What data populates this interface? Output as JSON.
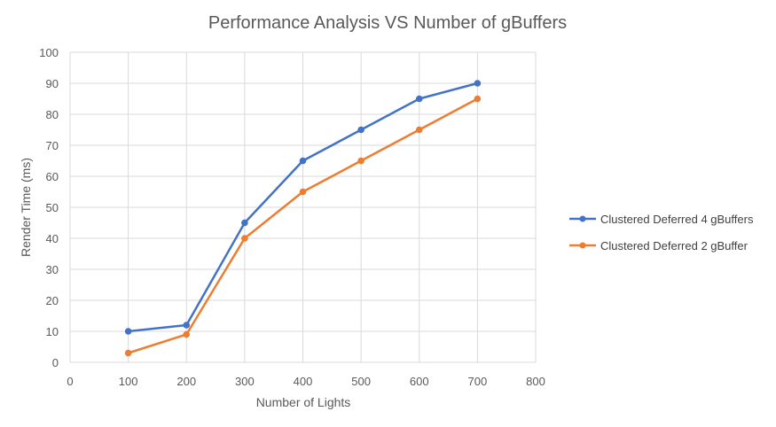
{
  "chart_data": {
    "type": "scatter",
    "title": "Performance Analysis VS Number of gBuffers",
    "xlabel": "Number of Lights",
    "ylabel": "Render Time (ms)",
    "xlim": [
      0,
      800
    ],
    "ylim": [
      0,
      100
    ],
    "x_ticks": [
      "0",
      "100",
      "200",
      "300",
      "400",
      "500",
      "600",
      "700",
      "800"
    ],
    "y_ticks": [
      "0",
      "10",
      "20",
      "30",
      "40",
      "50",
      "60",
      "70",
      "80",
      "90",
      "100"
    ],
    "grid": true,
    "legend_position": "right",
    "series": [
      {
        "name": "Clustered Deferred 4 gBuffers",
        "color": "#4472C4",
        "x": [
          100,
          200,
          300,
          400,
          500,
          600,
          700
        ],
        "y": [
          10,
          12,
          45,
          65,
          75,
          85,
          90
        ]
      },
      {
        "name": "Clustered Deferred 2 gBuffer",
        "color": "#ED7D31",
        "x": [
          100,
          200,
          300,
          400,
          500,
          600,
          700
        ],
        "y": [
          3,
          9,
          40,
          55,
          65,
          75,
          85
        ]
      }
    ]
  }
}
